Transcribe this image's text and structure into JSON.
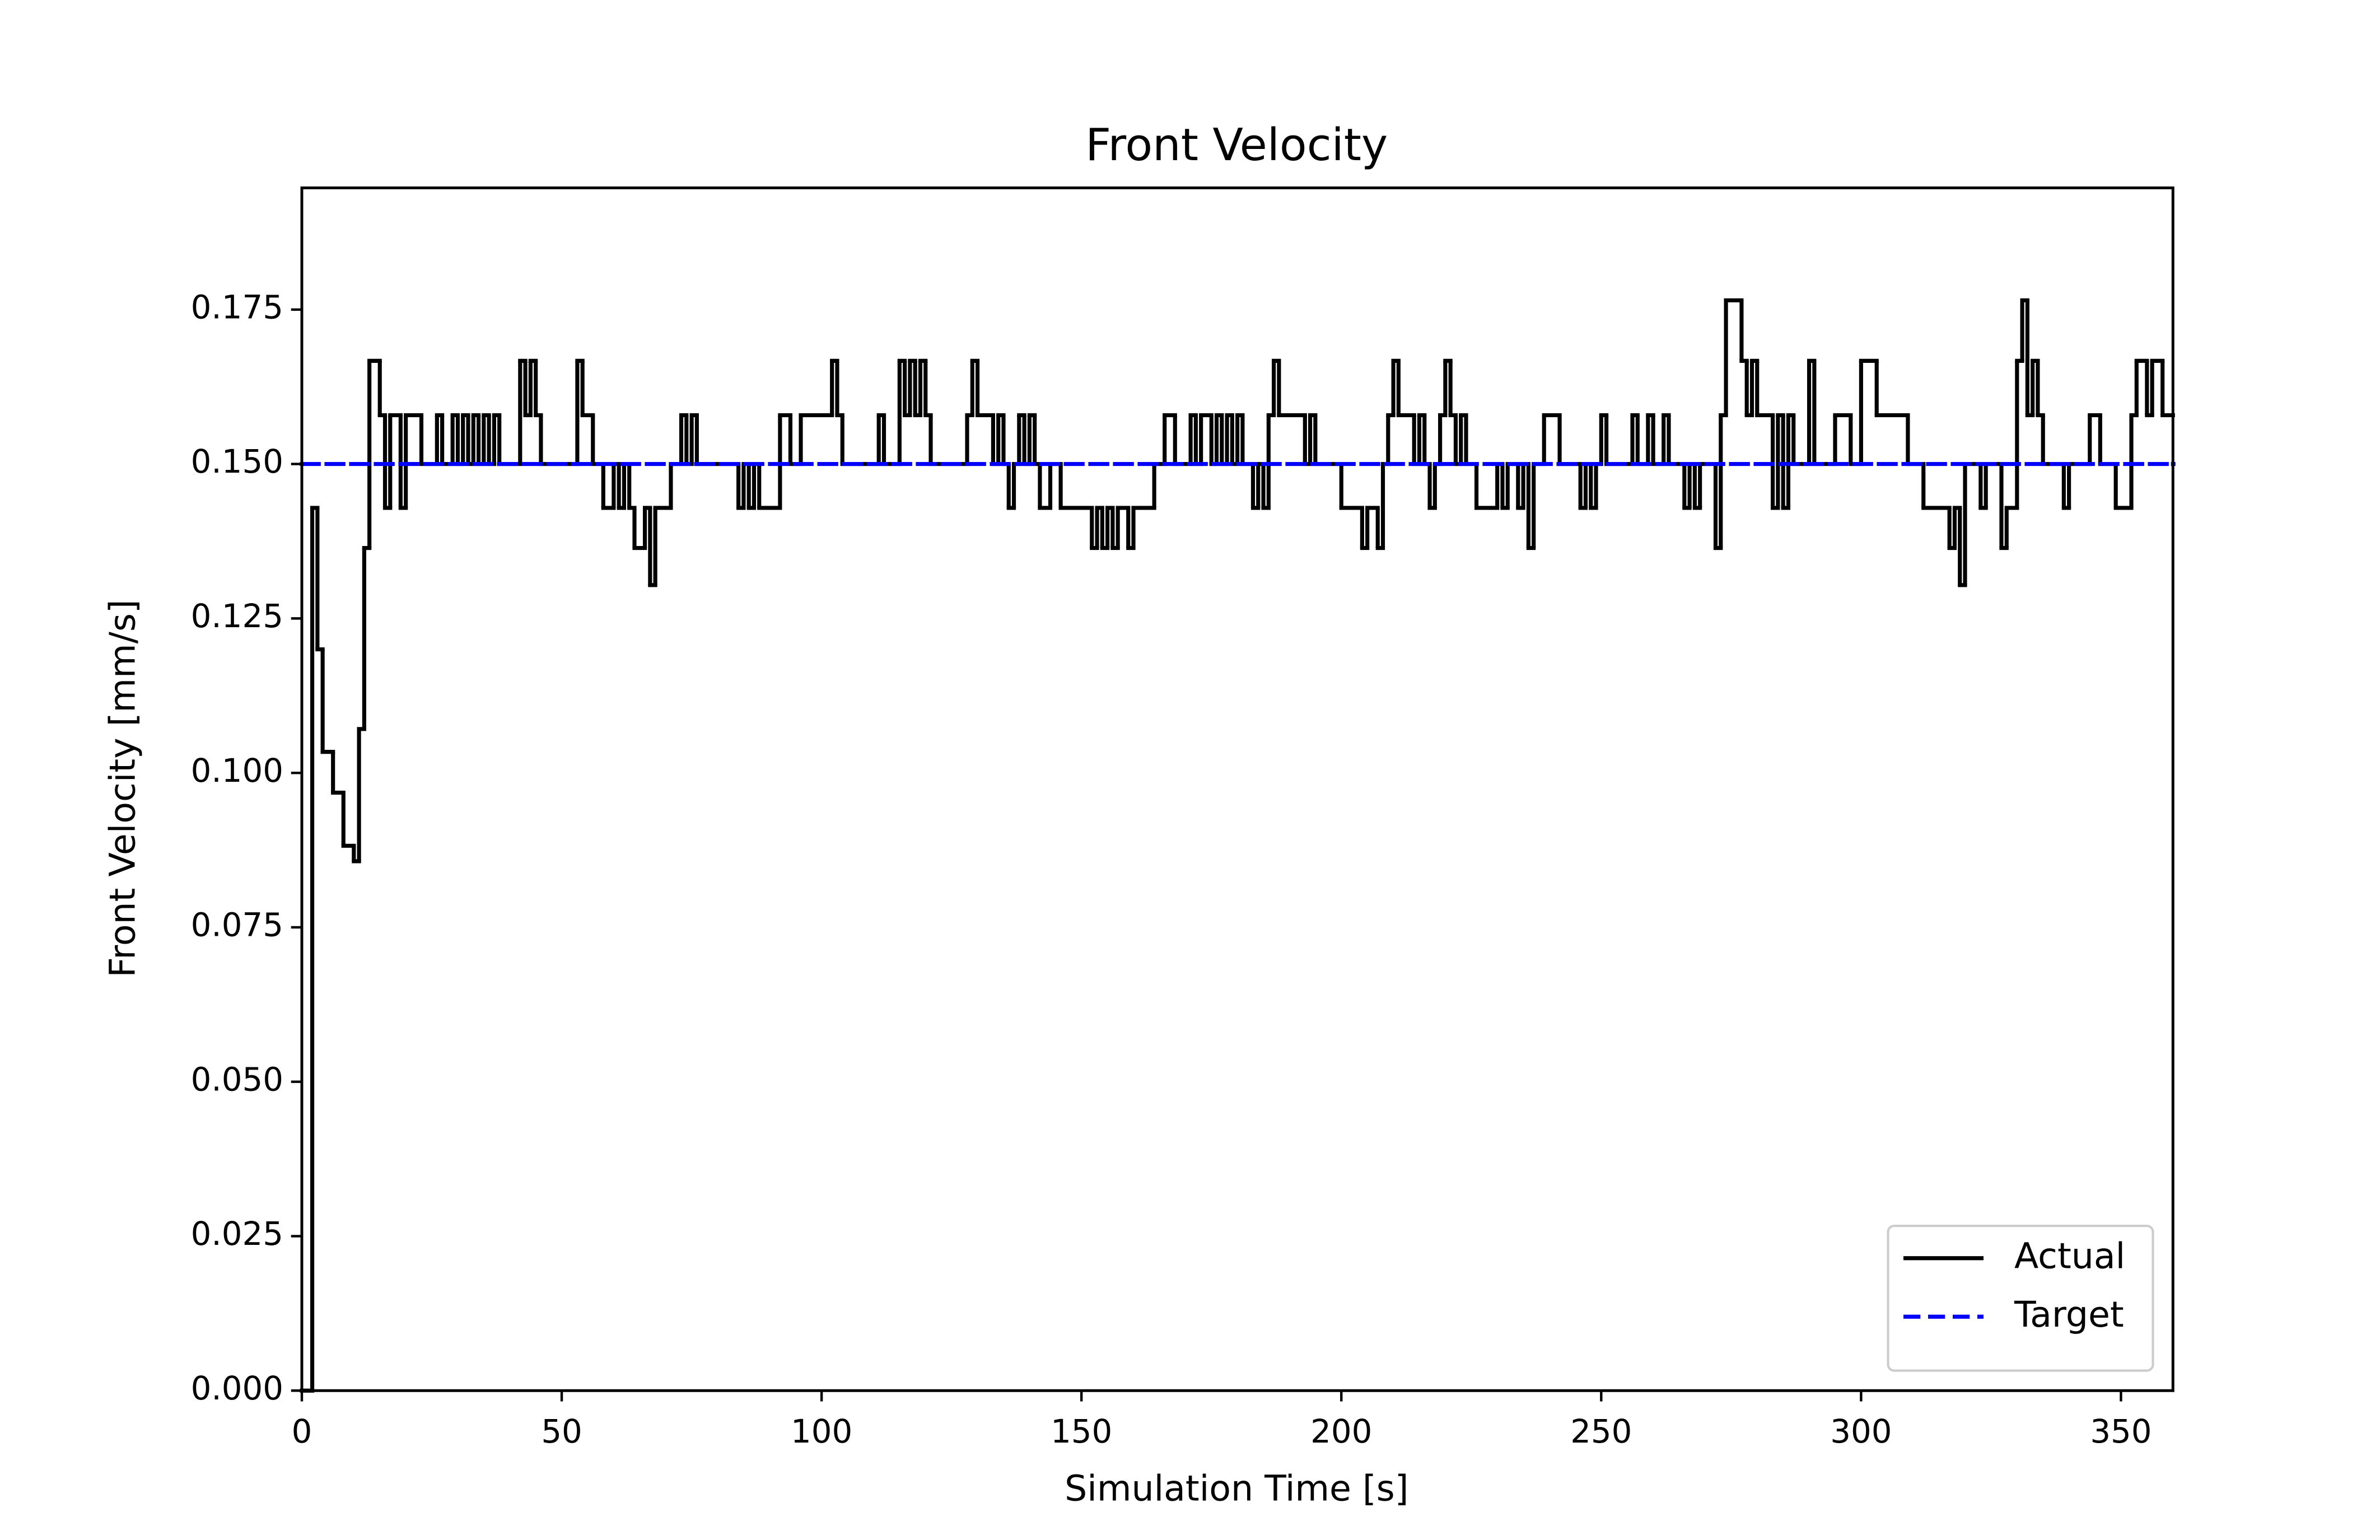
{
  "chart_data": {
    "type": "step",
    "title": "Front Velocity",
    "x_label": "Simulation Time [s]",
    "y_label": "Front Velocity [mm/s]",
    "xlim": [
      0,
      360
    ],
    "ylim": [
      0,
      0.1947
    ],
    "xticks": [
      0,
      50,
      100,
      150,
      200,
      250,
      300,
      350
    ],
    "yticks": [
      {
        "value": 0,
        "label": "0.000"
      },
      0.025,
      {
        "value": 0.05,
        "label": "0.050"
      },
      0.075,
      {
        "value": 0.1,
        "label": "0.100"
      },
      0.125,
      {
        "value": 0.15,
        "label": "0.150"
      },
      0.175
    ],
    "legend": "lower right",
    "series": [
      {
        "name": "Actual",
        "color": "#000000",
        "dash": "solid",
        "x": [
          0,
          2,
          3,
          4,
          6,
          8,
          10,
          11,
          12,
          13,
          15,
          16,
          17,
          19,
          20,
          23,
          26,
          27,
          29,
          30,
          31,
          32,
          33,
          34,
          35,
          36,
          37,
          38,
          42,
          43,
          44,
          45,
          46,
          53,
          54,
          56,
          58,
          60,
          61,
          62,
          63,
          64,
          66,
          67,
          68,
          71,
          73,
          74,
          75,
          76,
          84,
          85,
          86,
          87,
          88,
          92,
          94,
          96,
          102,
          103,
          104,
          111,
          112,
          115,
          116,
          117,
          118,
          119,
          120,
          121,
          128,
          129,
          130,
          133,
          134,
          135,
          136,
          137,
          138,
          139,
          140,
          141,
          142,
          144,
          146,
          152,
          153,
          154,
          155,
          156,
          157,
          159,
          160,
          164,
          166,
          168,
          171,
          172,
          173,
          175,
          176,
          177,
          178,
          179,
          180,
          181,
          183,
          184,
          185,
          186,
          187,
          188,
          193,
          194,
          195,
          200,
          204,
          205,
          207,
          208,
          209,
          210,
          211,
          214,
          215,
          216,
          217,
          218,
          219,
          220,
          221,
          222,
          223,
          224,
          226,
          230,
          231,
          232,
          234,
          235,
          236,
          237,
          239,
          242,
          246,
          247,
          248,
          249,
          250,
          251,
          256,
          257,
          259,
          260,
          262,
          263,
          266,
          267,
          268,
          269,
          272,
          273,
          274,
          277,
          278,
          279,
          280,
          283,
          284,
          285,
          286,
          287,
          290,
          291,
          295,
          298,
          300,
          303,
          309,
          312,
          317,
          318,
          319,
          320,
          323,
          324,
          327,
          328,
          330,
          331,
          332,
          333,
          334,
          335,
          339,
          340,
          344,
          346,
          349,
          352,
          353,
          355,
          356,
          358
        ],
        "values": [
          0,
          0.1429,
          0.12,
          0.1034,
          0.0968,
          0.0882,
          0.0857,
          0.1071,
          0.1364,
          0.1667,
          0.1579,
          0.1429,
          0.1579,
          0.1429,
          0.1579,
          0.15,
          0.1579,
          0.15,
          0.1579,
          0.15,
          0.1579,
          0.15,
          0.1579,
          0.15,
          0.1579,
          0.15,
          0.1579,
          0.15,
          0.1667,
          0.1579,
          0.1667,
          0.1579,
          0.15,
          0.1667,
          0.1579,
          0.15,
          0.1429,
          0.15,
          0.1429,
          0.15,
          0.1429,
          0.1364,
          0.1429,
          0.1304,
          0.1429,
          0.15,
          0.1579,
          0.15,
          0.1579,
          0.15,
          0.1429,
          0.15,
          0.1429,
          0.15,
          0.1429,
          0.1579,
          0.15,
          0.1579,
          0.1667,
          0.1579,
          0.15,
          0.1579,
          0.15,
          0.1667,
          0.1579,
          0.1667,
          0.1579,
          0.1667,
          0.1579,
          0.15,
          0.1579,
          0.1667,
          0.1579,
          0.15,
          0.1579,
          0.15,
          0.1429,
          0.15,
          0.1579,
          0.15,
          0.1579,
          0.15,
          0.1429,
          0.15,
          0.1429,
          0.1364,
          0.1429,
          0.1364,
          0.1429,
          0.1364,
          0.1429,
          0.1364,
          0.1429,
          0.15,
          0.1579,
          0.15,
          0.1579,
          0.15,
          0.1579,
          0.15,
          0.1579,
          0.15,
          0.1579,
          0.15,
          0.1579,
          0.15,
          0.1429,
          0.15,
          0.1429,
          0.1579,
          0.1667,
          0.1579,
          0.15,
          0.1579,
          0.15,
          0.1429,
          0.1364,
          0.1429,
          0.1364,
          0.15,
          0.1579,
          0.1667,
          0.1579,
          0.15,
          0.1579,
          0.15,
          0.1429,
          0.15,
          0.1579,
          0.1667,
          0.1579,
          0.15,
          0.1579,
          0.15,
          0.1429,
          0.15,
          0.1429,
          0.15,
          0.1429,
          0.15,
          0.1364,
          0.15,
          0.1579,
          0.15,
          0.1429,
          0.15,
          0.1429,
          0.15,
          0.1579,
          0.15,
          0.1579,
          0.15,
          0.1579,
          0.15,
          0.1579,
          0.15,
          0.1429,
          0.15,
          0.1429,
          0.15,
          0.1364,
          0.1579,
          0.1765,
          0.1667,
          0.1579,
          0.1667,
          0.1579,
          0.1429,
          0.1579,
          0.1429,
          0.1579,
          0.15,
          0.1667,
          0.15,
          0.1579,
          0.15,
          0.1667,
          0.1579,
          0.15,
          0.1429,
          0.1364,
          0.1429,
          0.1304,
          0.15,
          0.1429,
          0.15,
          0.1364,
          0.1429,
          0.1667,
          0.1765,
          0.1579,
          0.1667,
          0.1579,
          0.15,
          0.1429,
          0.15,
          0.1579,
          0.15,
          0.1429,
          0.1579,
          0.1667,
          0.1579,
          0.1667,
          0.1579
        ]
      },
      {
        "name": "Target",
        "color": "#0000ff",
        "dash": "dashed",
        "x": [
          0,
          360
        ],
        "values": [
          0.15,
          0.15
        ]
      }
    ]
  }
}
